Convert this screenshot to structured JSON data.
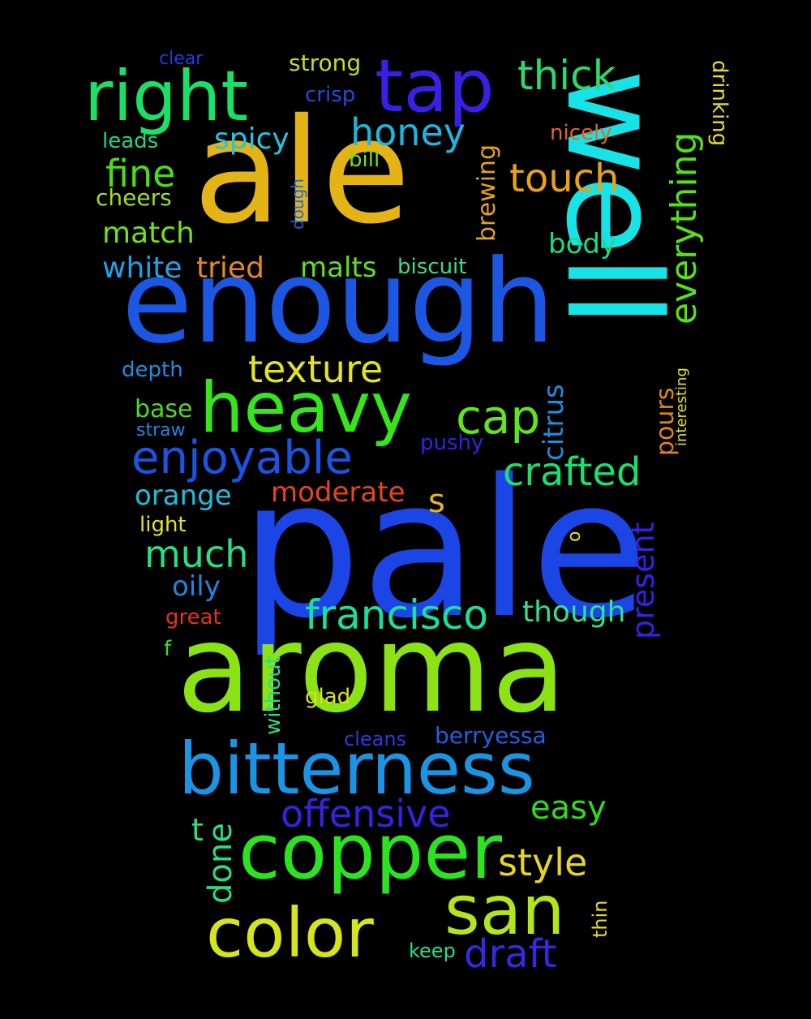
{
  "words": [
    {
      "text": "pale",
      "color": "#1c45e6"
    },
    {
      "text": "aroma",
      "color": "#8be215"
    },
    {
      "text": "ale",
      "color": "#e4b416"
    },
    {
      "text": "enough",
      "color": "#1c57e4"
    },
    {
      "text": "well",
      "color": "#17e3e6"
    },
    {
      "text": "bitterness",
      "color": "#1a94e4"
    },
    {
      "text": "copper",
      "color": "#2be41f"
    },
    {
      "text": "heavy",
      "color": "#34e61a"
    },
    {
      "text": "right",
      "color": "#19e066"
    },
    {
      "text": "tap",
      "color": "#3b1fe6"
    },
    {
      "text": "color",
      "color": "#d6e41a"
    },
    {
      "text": "san",
      "color": "#b3e619"
    },
    {
      "text": "francisco",
      "color": "#17e298"
    },
    {
      "text": "enjoyable",
      "color": "#1a54e4"
    },
    {
      "text": "texture",
      "color": "#e2e51c"
    },
    {
      "text": "crafted",
      "color": "#19e06e"
    },
    {
      "text": "cap",
      "color": "#5fe619"
    },
    {
      "text": "offensive",
      "color": "#3622e4"
    },
    {
      "text": "thick",
      "color": "#2bda6e"
    },
    {
      "text": "honey",
      "color": "#1bb6e2"
    },
    {
      "text": "touch",
      "color": "#e8a119"
    },
    {
      "text": "everything",
      "color": "#54e215"
    },
    {
      "text": "draft",
      "color": "#3629e3"
    },
    {
      "text": "style",
      "color": "#e6d71a"
    },
    {
      "text": "much",
      "color": "#23e285"
    },
    {
      "text": "fine",
      "color": "#47df1a"
    },
    {
      "text": "present",
      "color": "#3d1ee6"
    },
    {
      "text": "done",
      "color": "#26e07f"
    },
    {
      "text": "easy",
      "color": "#30dc1a"
    },
    {
      "text": "though",
      "color": "#2fe28e"
    },
    {
      "text": "match",
      "color": "#71e21b"
    },
    {
      "text": "malts",
      "color": "#5de21c"
    },
    {
      "text": "white",
      "color": "#1ba4e8"
    },
    {
      "text": "tried",
      "color": "#e38a1b"
    },
    {
      "text": "body",
      "color": "#19dc86"
    },
    {
      "text": "spicy",
      "color": "#1bc9e6"
    },
    {
      "text": "orange",
      "color": "#1cc0de"
    },
    {
      "text": "oily",
      "color": "#1a88e0"
    },
    {
      "text": "moderate",
      "color": "#e6451d"
    },
    {
      "text": "citrus",
      "color": "#1a8ee0"
    },
    {
      "text": "s",
      "color": "#e6b81a"
    },
    {
      "text": "t",
      "color": "#2be070"
    },
    {
      "text": "pours",
      "color": "#e08619"
    },
    {
      "text": "brewing",
      "color": "#e6a21a"
    },
    {
      "text": "berryessa",
      "color": "#1d62e2"
    },
    {
      "text": "strong",
      "color": "#c2df1b"
    },
    {
      "text": "crisp",
      "color": "#1e4ce0"
    },
    {
      "text": "nicely",
      "color": "#e6661c"
    },
    {
      "text": "drinking",
      "color": "#e5df1a"
    },
    {
      "text": "cheers",
      "color": "#9ee01a"
    },
    {
      "text": "leads",
      "color": "#1ad690"
    },
    {
      "text": "bill",
      "color": "#74df1d"
    },
    {
      "text": "biscuit",
      "color": "#3cdc86"
    },
    {
      "text": "depth",
      "color": "#1a8fdf"
    },
    {
      "text": "base",
      "color": "#4ede1a"
    },
    {
      "text": "straw",
      "color": "#1a88e0"
    },
    {
      "text": "pushy",
      "color": "#3a1fe4"
    },
    {
      "text": "light",
      "color": "#e6e21a"
    },
    {
      "text": "great",
      "color": "#e6321e"
    },
    {
      "text": "f",
      "color": "#3be01a"
    },
    {
      "text": "without",
      "color": "#21e08e"
    },
    {
      "text": "glad",
      "color": "#d6e41a"
    },
    {
      "text": "cleans",
      "color": "#2a3be0"
    },
    {
      "text": "keep",
      "color": "#24e08a"
    },
    {
      "text": "thin",
      "color": "#e3da1c"
    },
    {
      "text": "clear",
      "color": "#1e3fe2"
    },
    {
      "text": "dough",
      "color": "#1a6ae4"
    },
    {
      "text": "interesting",
      "color": "#e6e31b"
    },
    {
      "text": "o",
      "color": "#e6de1a"
    }
  ]
}
